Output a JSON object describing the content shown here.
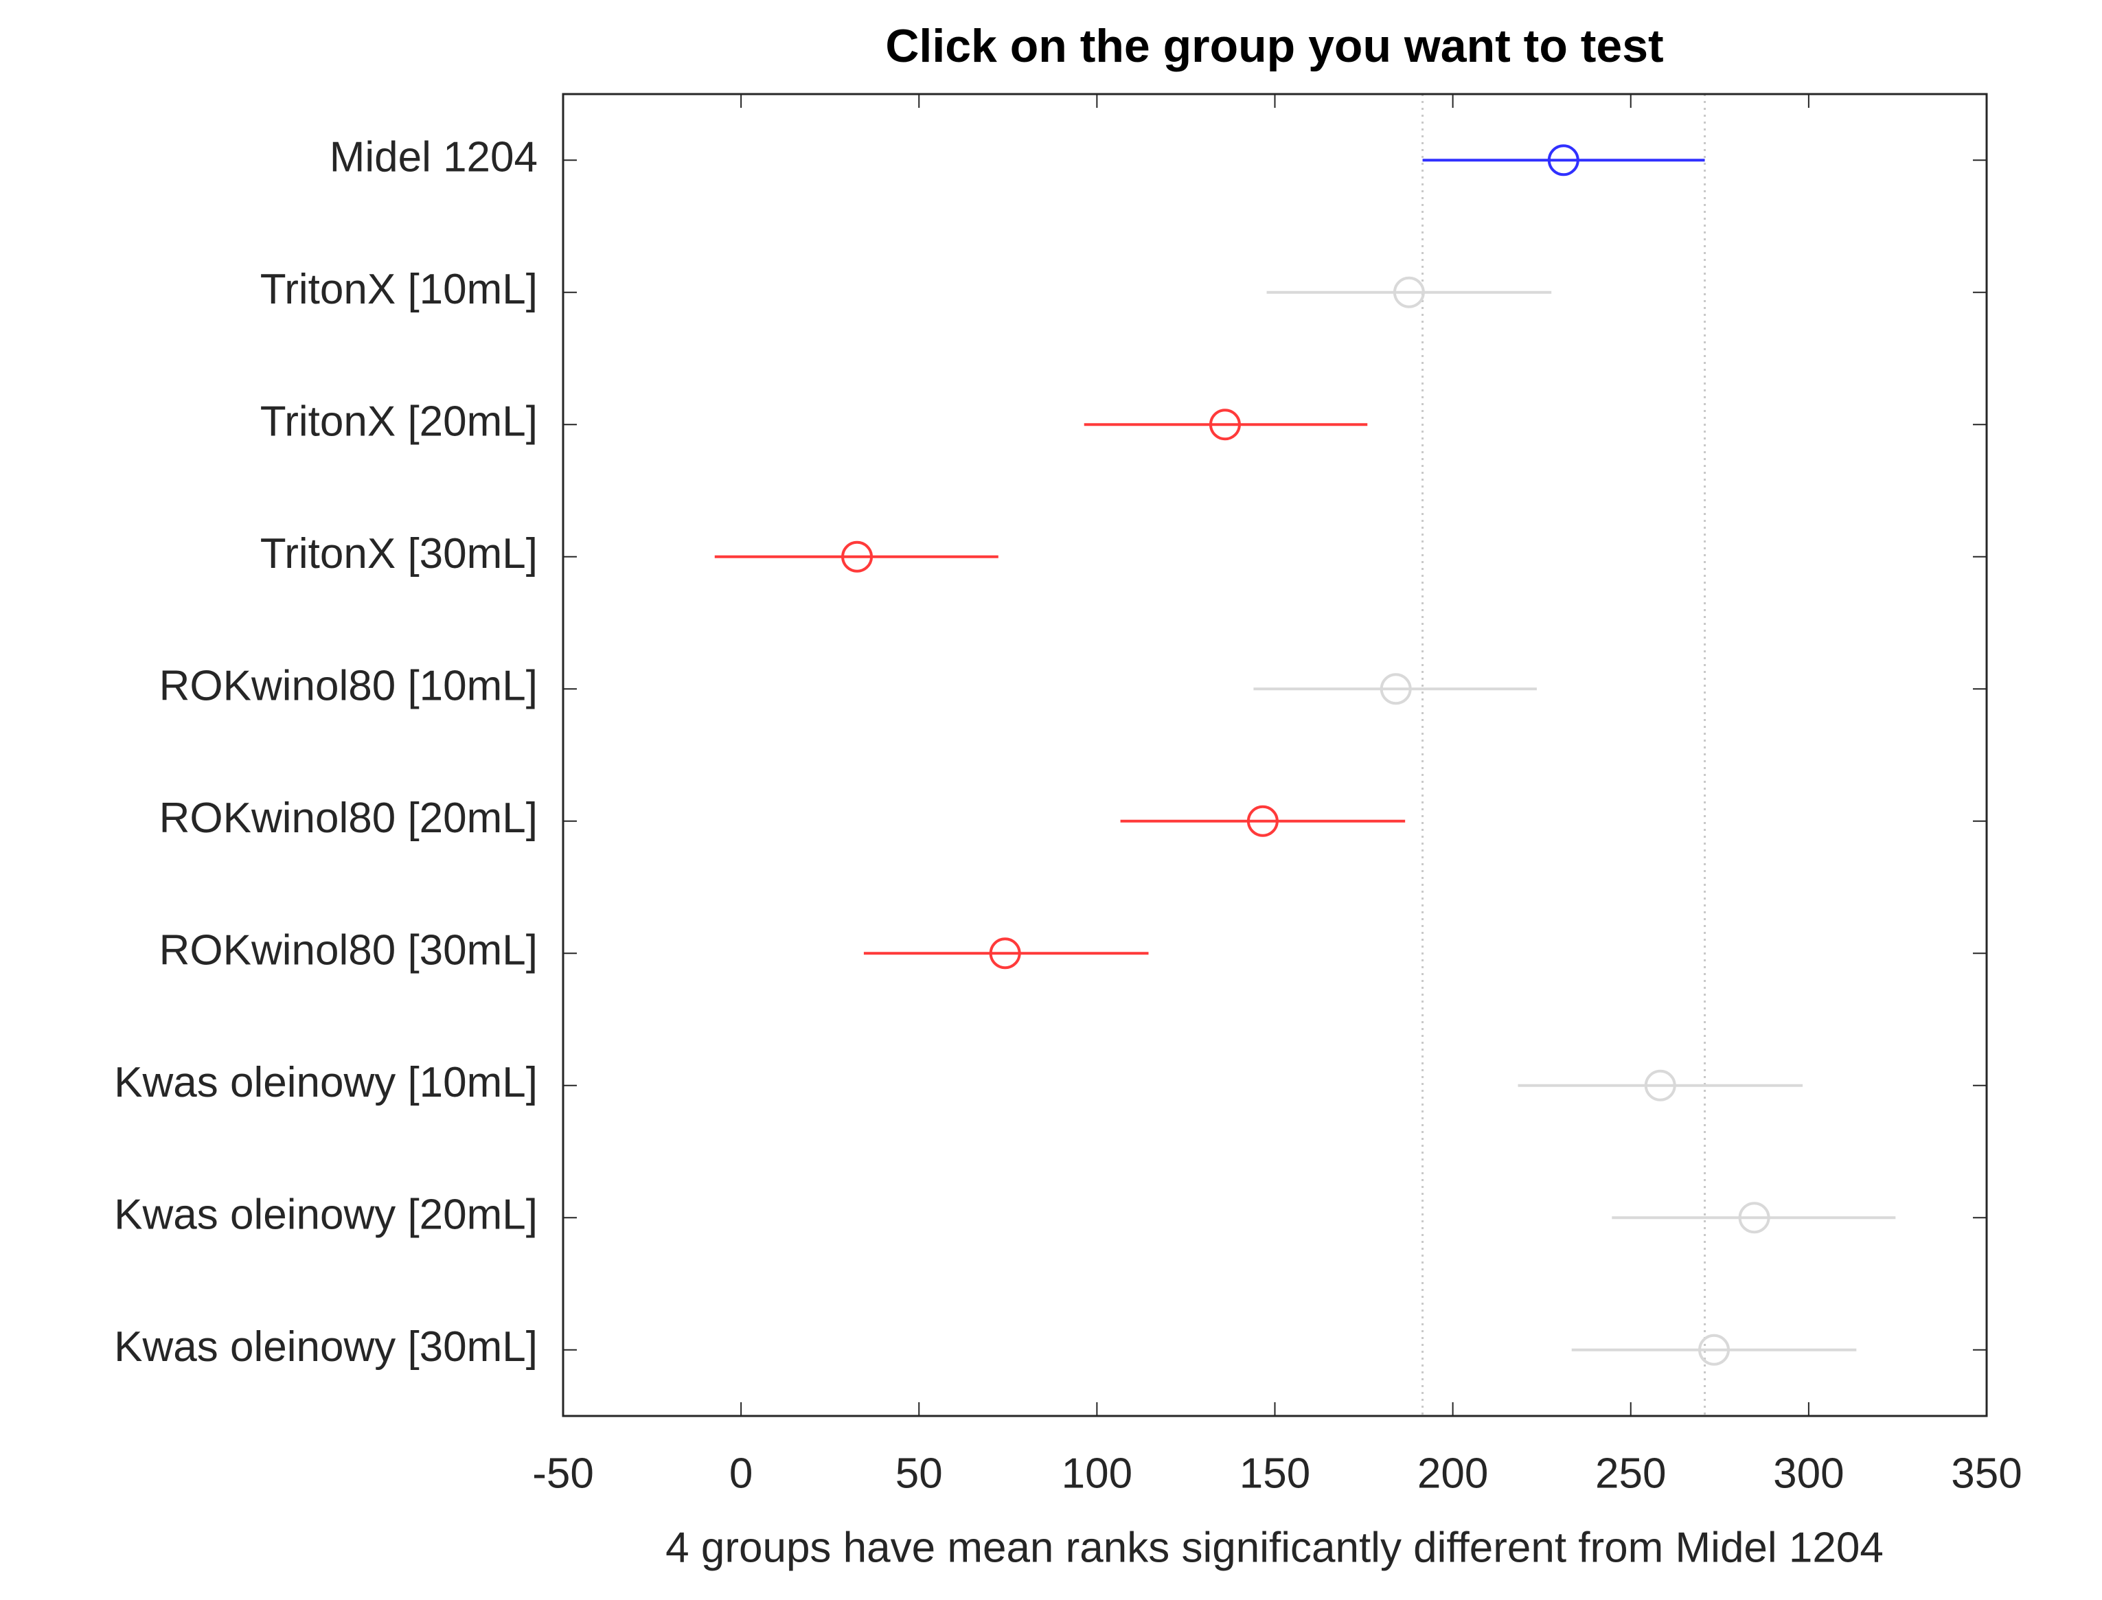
{
  "chart_data": {
    "type": "interval",
    "title": "Click on the group you want to test",
    "xlabel": "4 groups have mean ranks significantly different from Midel 1204",
    "categories": [
      "Midel 1204",
      "TritonX [10mL]",
      "TritonX [20mL]",
      "TritonX [30mL]",
      "ROKwinol80 [10mL]",
      "ROKwinol80 [20mL]",
      "ROKwinol80 [30mL]",
      "Kwas oleinowy [10mL]",
      "Kwas oleinowy [20mL]",
      "Kwas oleinowy [30mL]"
    ],
    "values": [
      231.1,
      187.7,
      136.0,
      32.6,
      184.0,
      146.6,
      74.2,
      258.3,
      284.7,
      273.4
    ],
    "lower": [
      191.5,
      147.7,
      96.4,
      -7.4,
      144.0,
      106.6,
      34.5,
      218.3,
      244.7,
      233.4
    ],
    "upper": [
      270.8,
      227.7,
      176.0,
      72.3,
      223.6,
      186.6,
      114.5,
      298.3,
      324.4,
      313.4
    ],
    "colors": [
      "#3030ff",
      "#d9d9d9",
      "#ff3a3a",
      "#ff3a3a",
      "#d9d9d9",
      "#ff3a3a",
      "#ff3a3a",
      "#d9d9d9",
      "#d9d9d9",
      "#d9d9d9"
    ],
    "xlim": [
      -50,
      350
    ],
    "xticks": [
      -50,
      0,
      50,
      100,
      150,
      200,
      250,
      300,
      350
    ],
    "reference_lines": true
  }
}
